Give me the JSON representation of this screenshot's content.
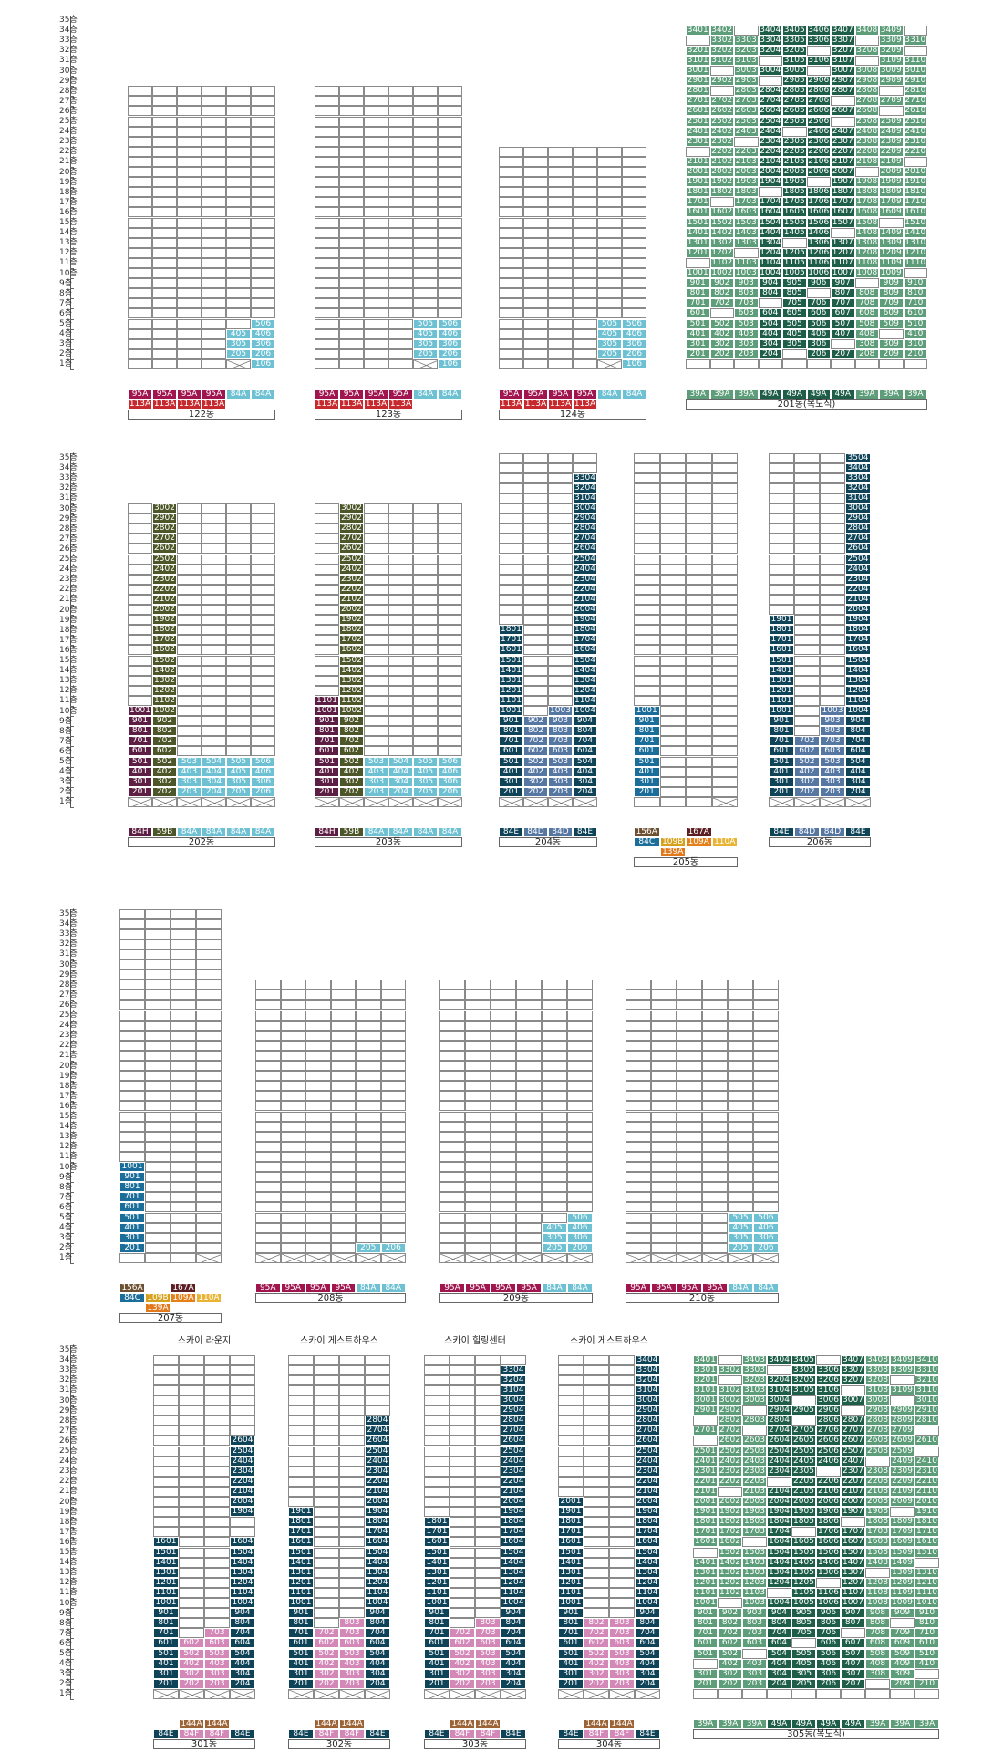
{
  "title": "",
  "colors": {
    "95A": "#A0154E",
    "113A": "#C62A2E",
    "84A": "#6EC1D2",
    "39A": "#5E9D7A",
    "49A": "#1E5E48",
    "84H": "#5C1F43",
    "59B": "#4D5628",
    "84E": "#0E4358",
    "84D": "#5577A2",
    "84C": "#1B6E9A",
    "156A": "#6D5030",
    "167A": "#5B1E22",
    "109B": "#D6A21E",
    "109A": "#E57F17",
    "110A": "#E9B434",
    "139A": "#E2781C",
    "144A": "#9C6436",
    "84F": "#D388B8"
  },
  "buildings": [
    {
      "id": "b122",
      "name": "122동",
      "floors": 28,
      "units": [
        "",
        "",
        "",
        "",
        "",
        ""
      ],
      "filled": {
        "1-5": "106",
        "2-4": "205",
        "2-5": "206",
        "3-4": "305",
        "3-5": "306",
        "4-4": "405",
        "4-5": "406",
        "5-5": "506"
      },
      "xcells": [
        "1-4"
      ],
      "types": [
        [
          "95A",
          "95A",
          "95A",
          "95A",
          "84A",
          "84A"
        ],
        [
          "113A",
          "113A",
          "113A",
          "113A",
          "",
          ""
        ]
      ]
    },
    {
      "id": "b123",
      "name": "123동",
      "floors": 28,
      "units": [
        "",
        "",
        "",
        "",
        "",
        ""
      ],
      "filled": {
        "1-5": "106",
        "2-4": "205",
        "2-5": "206",
        "3-4": "305",
        "3-5": "306",
        "4-4": "405",
        "4-5": "406",
        "5-4": "505",
        "5-5": "506"
      },
      "xcells": [
        "1-4"
      ],
      "types": [
        [
          "95A",
          "95A",
          "95A",
          "95A",
          "84A",
          "84A"
        ],
        [
          "113A",
          "113A",
          "113A",
          "113A",
          "",
          ""
        ]
      ]
    },
    {
      "id": "b124",
      "name": "124동",
      "floors": 22,
      "units": [
        "",
        "",
        "",
        "",
        "",
        ""
      ],
      "filled": {
        "1-5": "106",
        "2-4": "205",
        "2-5": "206",
        "3-4": "305",
        "3-5": "306",
        "4-4": "405",
        "4-5": "406",
        "5-4": "505",
        "5-5": "506"
      },
      "xcells": [
        "1-4"
      ],
      "types": [
        [
          "95A",
          "95A",
          "95A",
          "95A",
          "84A",
          "84A"
        ],
        [
          "113A",
          "113A",
          "113A",
          "113A",
          "",
          ""
        ]
      ]
    },
    {
      "id": "b201",
      "name": "201동(복도식)",
      "floors": 34,
      "units": [
        "39A",
        "39A",
        "39A",
        "49A",
        "49A",
        "49A",
        "49A",
        "39A",
        "39A",
        "39A"
      ],
      "pattern": "corridor",
      "rowsPresent": "all",
      "types": [
        [
          "39A",
          "39A",
          "39A",
          "49A",
          "49A",
          "49A",
          "49A",
          "39A",
          "39A",
          "39A"
        ]
      ]
    },
    {
      "id": "b202",
      "name": "202동",
      "floors": 30,
      "units": [
        "84H",
        "59B",
        "84A",
        "84A",
        "84A",
        "84A"
      ],
      "tower": [
        [
          0,
          2,
          10
        ],
        [
          1,
          2,
          30
        ]
      ],
      "low": [
        [
          2,
          2,
          5
        ],
        [
          3,
          2,
          5
        ],
        [
          4,
          2,
          5
        ],
        [
          5,
          2,
          5
        ]
      ],
      "xrow": true,
      "types": [
        [
          "84H",
          "59B",
          "84A",
          "84A",
          "84A",
          "84A"
        ]
      ]
    },
    {
      "id": "b203",
      "name": "203동",
      "floors": 30,
      "units": [
        "84H",
        "59B",
        "84A",
        "84A",
        "84A",
        "84A"
      ],
      "tower": [
        [
          0,
          2,
          11
        ],
        [
          1,
          2,
          30
        ]
      ],
      "low": [
        [
          2,
          2,
          5
        ],
        [
          3,
          2,
          5
        ],
        [
          4,
          2,
          5
        ],
        [
          5,
          2,
          5
        ]
      ],
      "xrow": true,
      "types": [
        [
          "84H",
          "59B",
          "84A",
          "84A",
          "84A",
          "84A"
        ]
      ]
    },
    {
      "id": "b204",
      "name": "204동",
      "floors": 35,
      "units": [
        "84E",
        "84D",
        "84D",
        "84E"
      ],
      "tower": [
        [
          0,
          2,
          18
        ],
        [
          1,
          1,
          9
        ],
        [
          2,
          1,
          10
        ],
        [
          3,
          2,
          33
        ]
      ],
      "xrow": true,
      "types": [
        [
          "84E",
          "84D",
          "84D",
          "84E"
        ]
      ]
    },
    {
      "id": "b205",
      "name": "205동",
      "floors": 35,
      "units": [
        "84C",
        "109B",
        "109A",
        "110A"
      ],
      "tower": [
        [
          0,
          2,
          10
        ]
      ],
      "xcells": [
        "1-3"
      ],
      "types": [
        [
          "156A",
          "",
          "167A",
          ""
        ],
        [
          "84C",
          "109B",
          "109A",
          "110A"
        ],
        [
          "",
          "139A",
          "",
          ""
        ]
      ]
    },
    {
      "id": "b206",
      "name": "206동",
      "floors": 35,
      "units": [
        "84E",
        "84D",
        "84D",
        "84E"
      ],
      "tower": [
        [
          0,
          2,
          19
        ],
        [
          1,
          1,
          7
        ],
        [
          2,
          1,
          10
        ],
        [
          3,
          2,
          35
        ]
      ],
      "xrow": true,
      "types": [
        [
          "84E",
          "84D",
          "84D",
          "84E"
        ]
      ]
    },
    {
      "id": "b207",
      "name": "207동",
      "floors": 35,
      "units": [
        "84C",
        "109B",
        "109A",
        "110A"
      ],
      "tower": [
        [
          0,
          2,
          10
        ]
      ],
      "xcells": [
        "1-3"
      ],
      "types": [
        [
          "156A",
          "",
          "167A",
          ""
        ],
        [
          "84C",
          "109B",
          "109A",
          "110A"
        ],
        [
          "",
          "139A",
          "",
          ""
        ]
      ]
    },
    {
      "id": "b208",
      "name": "208동",
      "floors": 28,
      "units": [
        "95A",
        "95A",
        "95A",
        "95A",
        "84A",
        "84A"
      ],
      "filled": {
        "2-4": "205",
        "2-5": "206"
      },
      "xrow": true,
      "types": [
        [
          "95A",
          "95A",
          "95A",
          "95A",
          "84A",
          "84A"
        ]
      ]
    },
    {
      "id": "b209",
      "name": "209동",
      "floors": 28,
      "units": [
        "95A",
        "95A",
        "95A",
        "95A",
        "84A",
        "84A"
      ],
      "filled": {
        "2-4": "205",
        "2-5": "206",
        "3-4": "305",
        "3-5": "306",
        "4-4": "405",
        "4-5": "406",
        "5-5": "506"
      },
      "xrow": true,
      "types": [
        [
          "95A",
          "95A",
          "95A",
          "95A",
          "84A",
          "84A"
        ]
      ]
    },
    {
      "id": "b210",
      "name": "210동",
      "floors": 28,
      "units": [
        "95A",
        "95A",
        "95A",
        "95A",
        "84A",
        "84A"
      ],
      "filled": {
        "2-4": "205",
        "2-5": "206",
        "3-4": "305",
        "3-5": "306",
        "4-4": "405",
        "4-5": "406",
        "5-4": "505",
        "5-5": "506"
      },
      "xrow": true,
      "types": [
        [
          "95A",
          "95A",
          "95A",
          "95A",
          "84A",
          "84A"
        ]
      ]
    },
    {
      "id": "b301",
      "name": "301동",
      "top": "스카이 라운지",
      "floors": 34,
      "units": [
        "84E",
        "84F",
        "84F",
        "84E"
      ],
      "tower": [
        [
          0,
          2,
          16
        ],
        [
          1,
          2,
          6
        ],
        [
          2,
          2,
          7
        ],
        [
          3,
          2,
          26
        ]
      ],
      "gaps": [
        "3-17",
        "3-18"
      ],
      "xrow": true,
      "types": [
        [
          "",
          "144A",
          "144A",
          ""
        ],
        [
          "84E",
          "84F",
          "84F",
          "84E"
        ]
      ]
    },
    {
      "id": "b302",
      "name": "302동",
      "top": "스카이 게스트하우스",
      "floors": 34,
      "units": [
        "84E",
        "84F",
        "84F",
        "84E"
      ],
      "tower": [
        [
          0,
          2,
          19
        ],
        [
          1,
          2,
          7
        ],
        [
          2,
          2,
          8
        ],
        [
          3,
          2,
          28
        ]
      ],
      "xrow": true,
      "types": [
        [
          "",
          "144A",
          "144A",
          ""
        ],
        [
          "84E",
          "84F",
          "84F",
          "84E"
        ]
      ]
    },
    {
      "id": "b303",
      "name": "303동",
      "top": "스카이 힐링센터",
      "floors": 34,
      "units": [
        "84E",
        "84F",
        "84F",
        "84E"
      ],
      "tower": [
        [
          0,
          2,
          18
        ],
        [
          1,
          2,
          7
        ],
        [
          2,
          2,
          8
        ],
        [
          3,
          2,
          33
        ]
      ],
      "xrow": true,
      "types": [
        [
          "",
          "144A",
          "144A",
          ""
        ],
        [
          "84E",
          "84F",
          "84F",
          "84E"
        ]
      ]
    },
    {
      "id": "b304",
      "name": "304동",
      "top": "스카이 게스트하우스",
      "floors": 34,
      "units": [
        "84E",
        "84F",
        "84F",
        "84E"
      ],
      "tower": [
        [
          0,
          2,
          20
        ],
        [
          1,
          2,
          8
        ],
        [
          2,
          2,
          8
        ],
        [
          3,
          2,
          34
        ]
      ],
      "xrow": true,
      "types": [
        [
          "",
          "144A",
          "144A",
          ""
        ],
        [
          "84E",
          "84F",
          "84F",
          "84E"
        ]
      ]
    },
    {
      "id": "b305",
      "name": "305동(복도식)",
      "floors": 34,
      "units": [
        "39A",
        "39A",
        "39A",
        "49A",
        "49A",
        "49A",
        "49A",
        "39A",
        "39A",
        "39A"
      ],
      "pattern": "corridor",
      "types": [
        [
          "39A",
          "39A",
          "39A",
          "49A",
          "49A",
          "49A",
          "49A",
          "39A",
          "39A",
          "39A"
        ]
      ]
    }
  ],
  "floor_labels": [
    "1층",
    "2층",
    "3층",
    "4층",
    "5층",
    "6층",
    "7층",
    "8층",
    "9층",
    "10층",
    "11층",
    "12층",
    "13층",
    "14층",
    "15층",
    "16층",
    "17층",
    "18층",
    "19층",
    "20층",
    "21층",
    "22층",
    "23층",
    "24층",
    "25층",
    "26층",
    "27층",
    "28층",
    "29층",
    "30층",
    "31층",
    "32층",
    "33층",
    "34층",
    "35층"
  ]
}
